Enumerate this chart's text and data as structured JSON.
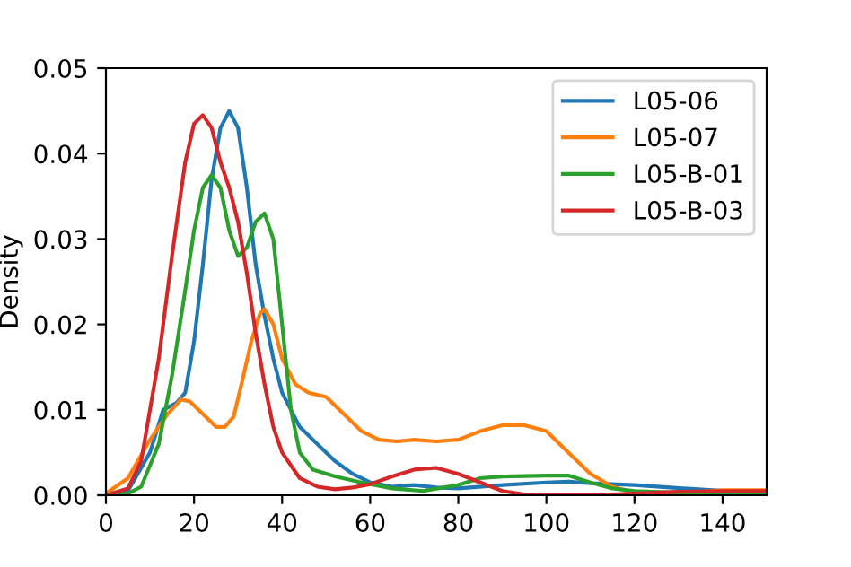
{
  "chart_data": {
    "type": "line",
    "ylabel": "Density",
    "xlim": [
      0,
      150
    ],
    "xticks": [
      0,
      20,
      40,
      60,
      80,
      100,
      120,
      140
    ],
    "ylim": [
      0,
      0.05
    ],
    "yticks": [
      {
        "value": 0,
        "label": "0.00"
      },
      {
        "value": 0.01,
        "label": "0.01"
      },
      {
        "value": 0.02,
        "label": "0.02"
      },
      {
        "value": 0.03,
        "label": "0.03"
      },
      {
        "value": 0.04,
        "label": "0.04"
      },
      {
        "value": 0.05,
        "label": "0.05"
      }
    ],
    "legend": "top right",
    "grid": false,
    "marker": "none",
    "line_style": "solid",
    "series": [
      {
        "name": "L05-06",
        "color": "#1f77b4",
        "x": [
          0,
          5,
          10,
          13,
          16,
          18,
          20,
          22,
          24,
          26,
          28,
          30,
          32,
          34,
          36,
          38,
          40,
          44,
          48,
          52,
          56,
          60,
          65,
          70,
          75,
          80,
          90,
          100,
          105,
          110,
          120,
          128,
          150
        ],
        "values": [
          0,
          0.0005,
          0.005,
          0.01,
          0.0108,
          0.012,
          0.018,
          0.027,
          0.037,
          0.043,
          0.045,
          0.043,
          0.036,
          0.027,
          0.021,
          0.016,
          0.012,
          0.008,
          0.006,
          0.004,
          0.0025,
          0.0015,
          0.001,
          0.0012,
          0.0009,
          0.0008,
          0.0012,
          0.0015,
          0.0016,
          0.0014,
          0.0012,
          0.0009,
          0.0002
        ]
      },
      {
        "name": "L05-07",
        "color": "#ff7f0e",
        "x": [
          0,
          5,
          10,
          14,
          17,
          19,
          22,
          25,
          27,
          29,
          31,
          33,
          35,
          36,
          38,
          40,
          43,
          46,
          50,
          53,
          58,
          62,
          66,
          70,
          75,
          80,
          85,
          90,
          95,
          100,
          105,
          110,
          115,
          120,
          130,
          140,
          150
        ],
        "values": [
          0.0002,
          0.002,
          0.0065,
          0.0095,
          0.0112,
          0.011,
          0.0095,
          0.008,
          0.008,
          0.0092,
          0.0135,
          0.018,
          0.0213,
          0.0218,
          0.02,
          0.016,
          0.013,
          0.012,
          0.0115,
          0.01,
          0.0075,
          0.0065,
          0.0063,
          0.0065,
          0.0063,
          0.0065,
          0.0075,
          0.0082,
          0.0082,
          0.0075,
          0.005,
          0.0025,
          0.001,
          0.0003,
          0.0002,
          0.0006,
          0.0006
        ]
      },
      {
        "name": "L05-B-01",
        "color": "#2ca02c",
        "x": [
          0,
          5,
          8,
          12,
          15,
          18,
          20,
          22,
          24,
          26,
          28,
          30,
          32,
          34,
          36,
          38,
          40,
          42,
          44,
          47,
          52,
          58,
          65,
          72,
          80,
          85,
          90,
          100,
          105,
          110,
          115,
          120,
          130,
          140,
          150
        ],
        "values": [
          0,
          0.0002,
          0.001,
          0.006,
          0.014,
          0.024,
          0.031,
          0.036,
          0.0375,
          0.036,
          0.031,
          0.028,
          0.029,
          0.032,
          0.033,
          0.03,
          0.02,
          0.01,
          0.005,
          0.003,
          0.0022,
          0.0015,
          0.0008,
          0.0005,
          0.0012,
          0.002,
          0.0022,
          0.0023,
          0.0023,
          0.0015,
          0.0008,
          0.0005,
          0.0003,
          0.0001,
          0
        ]
      },
      {
        "name": "L05-B-03",
        "color": "#d62728",
        "x": [
          0,
          5,
          8,
          12,
          15,
          18,
          20,
          22,
          24,
          26,
          28,
          30,
          32,
          34,
          36,
          38,
          40,
          44,
          48,
          52,
          56,
          60,
          65,
          70,
          75,
          80,
          85,
          90,
          95,
          100,
          110,
          120,
          130,
          140,
          150
        ],
        "values": [
          0,
          0.0008,
          0.004,
          0.016,
          0.028,
          0.039,
          0.0435,
          0.0445,
          0.043,
          0.039,
          0.036,
          0.032,
          0.026,
          0.019,
          0.013,
          0.008,
          0.005,
          0.002,
          0.001,
          0.0007,
          0.0009,
          0.0013,
          0.0022,
          0.003,
          0.0032,
          0.0025,
          0.0015,
          0.0005,
          0.0001,
          0,
          0,
          0.0002,
          0.0004,
          0.0005,
          0.0005
        ]
      }
    ]
  }
}
